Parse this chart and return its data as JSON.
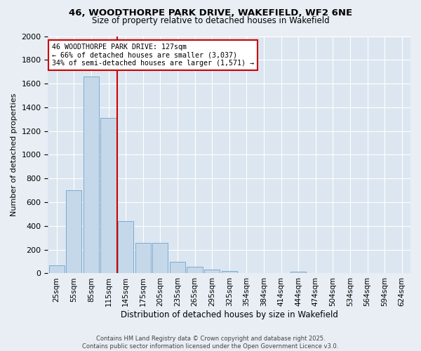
{
  "title1": "46, WOODTHORPE PARK DRIVE, WAKEFIELD, WF2 6NE",
  "title2": "Size of property relative to detached houses in Wakefield",
  "xlabel": "Distribution of detached houses by size in Wakefield",
  "ylabel": "Number of detached properties",
  "bar_values": [
    65,
    700,
    1660,
    1310,
    440,
    255,
    260,
    95,
    55,
    30,
    20,
    0,
    0,
    0,
    15,
    0,
    0,
    0,
    0,
    0,
    0
  ],
  "bin_labels": [
    "25sqm",
    "55sqm",
    "85sqm",
    "115sqm",
    "145sqm",
    "175sqm",
    "205sqm",
    "235sqm",
    "265sqm",
    "295sqm",
    "325sqm",
    "354sqm",
    "384sqm",
    "414sqm",
    "444sqm",
    "474sqm",
    "504sqm",
    "534sqm",
    "564sqm",
    "594sqm",
    "624sqm"
  ],
  "bar_color": "#c5d8ea",
  "bar_edge_color": "#7aaacf",
  "vline_color": "#cc0000",
  "vline_x": 3.5,
  "annotation_text": "46 WOODTHORPE PARK DRIVE: 127sqm\n← 66% of detached houses are smaller (3,037)\n34% of semi-detached houses are larger (1,571) →",
  "annotation_box_color": "#ffffff",
  "annotation_box_edge": "#cc0000",
  "ylim": [
    0,
    2000
  ],
  "yticks": [
    0,
    200,
    400,
    600,
    800,
    1000,
    1200,
    1400,
    1600,
    1800,
    2000
  ],
  "footnote": "Contains HM Land Registry data © Crown copyright and database right 2025.\nContains public sector information licensed under the Open Government Licence v3.0.",
  "bg_color": "#e8eef4",
  "plot_bg_color": "#dce6f0",
  "grid_color": "#ffffff"
}
